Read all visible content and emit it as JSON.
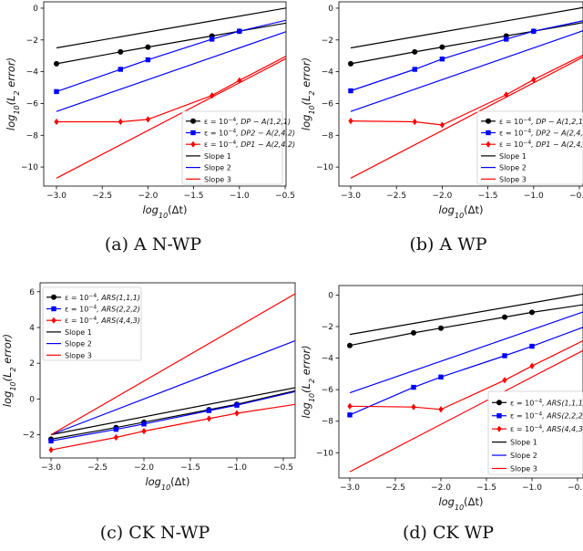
{
  "figure": {
    "panels": [
      {
        "caption": "(a) A N-WP"
      },
      {
        "caption": "(b) A WP"
      },
      {
        "caption": "(c) CK N-WP"
      },
      {
        "caption": "(d) CK WP"
      }
    ]
  },
  "colors": {
    "black": "#000000",
    "blue": "#0000ff",
    "red": "#ff0000"
  },
  "chart_data": [
    {
      "type": "line",
      "xlabel": "log10(Δt)",
      "ylabel": "log10(L2 error)",
      "xlim": [
        -3.0,
        -0.25
      ],
      "ylim": [
        -11.2,
        0.4
      ],
      "xticks": [
        "-3.0",
        "-2.5",
        "-2.0",
        "-1.5",
        "-1.0",
        "-0.5"
      ],
      "yticks": [
        "0",
        "-2",
        "-4",
        "-6",
        "-8",
        "-10"
      ],
      "legend_position": "lower-right",
      "series": [
        {
          "name": "ε = 10^-4, DP − A(1,2,1)",
          "color": "#000000",
          "marker": "circle",
          "x": [
            -3.0,
            -2.3,
            -2.0,
            -1.3,
            -1.0,
            -0.3
          ],
          "y": [
            -3.5,
            -2.75,
            -2.45,
            -1.75,
            -1.45,
            -0.75
          ]
        },
        {
          "name": "ε = 10^-4, DP2 − A(2,4,2)",
          "color": "#0000ff",
          "marker": "square",
          "x": [
            -3.0,
            -2.3,
            -2.0,
            -1.3,
            -1.0,
            -0.3
          ],
          "y": [
            -5.25,
            -3.85,
            -3.25,
            -1.95,
            -1.45,
            -0.5
          ]
        },
        {
          "name": "ε = 10^-4, DP1 − A(2,4,2)",
          "color": "#ff0000",
          "marker": "diamond",
          "x": [
            -3.0,
            -2.3,
            -2.0,
            -1.3,
            -1.0,
            -0.3
          ],
          "y": [
            -7.15,
            -7.15,
            -7.0,
            -5.5,
            -4.55,
            -2.45
          ]
        },
        {
          "name": "Slope 1",
          "color": "#000000",
          "marker": "none",
          "x": [
            -3.0,
            -0.3
          ],
          "y": [
            -2.5,
            0.2
          ]
        },
        {
          "name": "Slope 2",
          "color": "#0000ff",
          "marker": "none",
          "x": [
            -3.0,
            -0.3
          ],
          "y": [
            -6.5,
            -1.1
          ]
        },
        {
          "name": "Slope 3",
          "color": "#ff0000",
          "marker": "none",
          "x": [
            -3.0,
            -0.3
          ],
          "y": [
            -10.7,
            -2.6
          ]
        }
      ]
    },
    {
      "type": "line",
      "xlabel": "log10(Δt)",
      "ylabel": "log10(L2 error)",
      "xlim": [
        -3.0,
        -0.25
      ],
      "ylim": [
        -11.2,
        0.4
      ],
      "xticks": [
        "-3.0",
        "-2.5",
        "-2.0",
        "-1.5",
        "-1.0",
        "-0.5"
      ],
      "yticks": [
        "0",
        "-2",
        "-4",
        "-6",
        "-8",
        "-10"
      ],
      "legend_position": "lower-right",
      "series": [
        {
          "name": "ε = 10^-4, DP − A(1,2,1)",
          "color": "#000000",
          "marker": "circle",
          "x": [
            -3.0,
            -2.3,
            -2.0,
            -1.3,
            -1.0,
            -0.3
          ],
          "y": [
            -3.5,
            -2.75,
            -2.45,
            -1.75,
            -1.45,
            -0.75
          ]
        },
        {
          "name": "ε = 10^-4, DP2 − A(2,4,2)",
          "color": "#0000ff",
          "marker": "square",
          "x": [
            -3.0,
            -2.3,
            -2.0,
            -1.3,
            -1.0,
            -0.3
          ],
          "y": [
            -5.2,
            -3.85,
            -3.2,
            -1.95,
            -1.45,
            -0.6
          ]
        },
        {
          "name": "ε = 10^-4, DP1 − A(2,4,2)",
          "color": "#ff0000",
          "marker": "diamond",
          "x": [
            -3.0,
            -2.3,
            -2.0,
            -1.3,
            -1.0,
            -0.3
          ],
          "y": [
            -7.1,
            -7.15,
            -7.35,
            -5.45,
            -4.5,
            -2.5
          ]
        },
        {
          "name": "Slope 1",
          "color": "#000000",
          "marker": "none",
          "x": [
            -3.0,
            -0.3
          ],
          "y": [
            -2.5,
            0.2
          ]
        },
        {
          "name": "Slope 2",
          "color": "#0000ff",
          "marker": "none",
          "x": [
            -3.0,
            -0.3
          ],
          "y": [
            -6.5,
            -1.1
          ]
        },
        {
          "name": "Slope 3",
          "color": "#ff0000",
          "marker": "none",
          "x": [
            -3.0,
            -0.3
          ],
          "y": [
            -10.7,
            -2.6
          ]
        }
      ]
    },
    {
      "type": "line",
      "xlabel": "log10(Δt)",
      "ylabel": "log10(L2 error)",
      "xlim": [
        -3.0,
        -0.25
      ],
      "ylim": [
        -3.3,
        6.5
      ],
      "xticks": [
        "-3.0",
        "-2.5",
        "-2.0",
        "-1.5",
        "-1.0",
        "-0.5"
      ],
      "yticks": [
        "6",
        "4",
        "2",
        "0",
        "-2"
      ],
      "legend_position": "upper-left",
      "series": [
        {
          "name": "ε = 10^-4, ARS(1,1,1)",
          "color": "#000000",
          "marker": "circle",
          "x": [
            -3.0,
            -2.3,
            -2.0,
            -1.3,
            -1.0,
            -0.3
          ],
          "y": [
            -2.25,
            -1.6,
            -1.3,
            -0.6,
            -0.3,
            0.55
          ]
        },
        {
          "name": "ε = 10^-4, ARS(2,2,2)",
          "color": "#0000ff",
          "marker": "square",
          "x": [
            -3.0,
            -2.3,
            -2.0,
            -1.3,
            -1.0,
            -0.3
          ],
          "y": [
            -2.35,
            -1.7,
            -1.4,
            -0.65,
            -0.35,
            0.5
          ]
        },
        {
          "name": "ε = 10^-4, ARS(4,4,3)",
          "color": "#ff0000",
          "marker": "diamond",
          "x": [
            -3.0,
            -2.3,
            -2.0,
            -1.3,
            -1.0,
            -0.3
          ],
          "y": [
            -2.85,
            -2.15,
            -1.8,
            -1.1,
            -0.8,
            -0.25
          ]
        },
        {
          "name": "Slope 1",
          "color": "#000000",
          "marker": "none",
          "x": [
            -3.0,
            -0.3
          ],
          "y": [
            -2.0,
            0.7
          ]
        },
        {
          "name": "Slope 2",
          "color": "#0000ff",
          "marker": "none",
          "x": [
            -3.0,
            -0.3
          ],
          "y": [
            -2.0,
            3.4
          ]
        },
        {
          "name": "Slope 3",
          "color": "#ff0000",
          "marker": "none",
          "x": [
            -3.0,
            -0.3
          ],
          "y": [
            -2.0,
            6.1
          ]
        }
      ]
    },
    {
      "type": "line",
      "xlabel": "log10(Δt)",
      "ylabel": "log10(L2 error)",
      "xlim": [
        -3.0,
        -0.25
      ],
      "ylim": [
        -11.6,
        0.6
      ],
      "xticks": [
        "-3.0",
        "-2.5",
        "-2.0",
        "-1.5",
        "-1.0",
        "-0.5"
      ],
      "yticks": [
        "0",
        "-2",
        "-4",
        "-6",
        "-8",
        "-10"
      ],
      "legend_position": "lower-right",
      "series": [
        {
          "name": "ε = 10^-4, ARS(1,1,1)",
          "color": "#000000",
          "marker": "circle",
          "x": [
            -3.0,
            -2.3,
            -2.0,
            -1.3,
            -1.0,
            -0.3
          ],
          "y": [
            -3.2,
            -2.4,
            -2.1,
            -1.4,
            -1.1,
            -0.5
          ]
        },
        {
          "name": "ε = 10^-4, ARS(2,2,2)",
          "color": "#0000ff",
          "marker": "square",
          "x": [
            -3.0,
            -2.3,
            -2.0,
            -1.3,
            -1.0,
            -0.3
          ],
          "y": [
            -7.6,
            -5.85,
            -5.2,
            -3.85,
            -3.25,
            -1.75
          ]
        },
        {
          "name": "ε = 10^-4, ARS(4,4,3)",
          "color": "#ff0000",
          "marker": "diamond",
          "x": [
            -3.0,
            -2.3,
            -2.0,
            -1.3,
            -1.0,
            -0.3
          ],
          "y": [
            -7.05,
            -7.1,
            -7.25,
            -5.4,
            -4.5,
            -2.5
          ]
        },
        {
          "name": "Slope 1",
          "color": "#000000",
          "marker": "none",
          "x": [
            -3.0,
            -0.3
          ],
          "y": [
            -2.5,
            0.2
          ]
        },
        {
          "name": "Slope 2",
          "color": "#0000ff",
          "marker": "none",
          "x": [
            -3.0,
            -0.3
          ],
          "y": [
            -6.2,
            -0.8
          ]
        },
        {
          "name": "Slope 3",
          "color": "#ff0000",
          "marker": "none",
          "x": [
            -3.0,
            -0.3
          ],
          "y": [
            -11.2,
            -3.1
          ]
        }
      ]
    }
  ]
}
